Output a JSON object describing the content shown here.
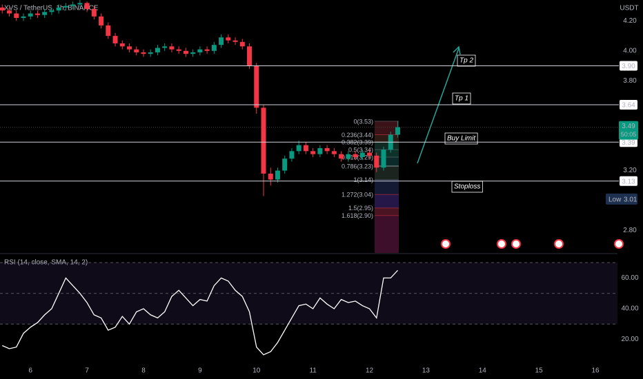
{
  "chart_data": [
    {
      "type": "candlestick",
      "title": "XVS / TetherUS, 1h, BINANCE",
      "unit": "USDT",
      "x": [
        5.5,
        5.625,
        5.75,
        5.875,
        6,
        6.125,
        6.25,
        6.375,
        6.5,
        6.625,
        6.75,
        6.875,
        7,
        7.125,
        7.25,
        7.375,
        7.5,
        7.625,
        7.75,
        7.875,
        8,
        8.125,
        8.25,
        8.375,
        8.5,
        8.625,
        8.75,
        8.875,
        9,
        9.125,
        9.25,
        9.375,
        9.5,
        9.625,
        9.75,
        9.875,
        10,
        10.125,
        10.25,
        10.375,
        10.5,
        10.625,
        10.75,
        10.875,
        11,
        11.125,
        11.25,
        11.375,
        11.5,
        11.625,
        11.75,
        11.875,
        12,
        12.125,
        12.25,
        12.375,
        12.5
      ],
      "open": [
        4.29,
        4.27,
        4.25,
        4.22,
        4.23,
        4.25,
        4.24,
        4.26,
        4.27,
        4.29,
        4.3,
        4.31,
        4.32,
        4.28,
        4.23,
        4.17,
        4.1,
        4.05,
        4.03,
        4.01,
        3.99,
        3.98,
        3.99,
        4.02,
        4.03,
        4.01,
        4.0,
        3.98,
        3.99,
        4.01,
        4.0,
        4.04,
        4.09,
        4.07,
        4.06,
        4.03,
        3.9,
        3.62,
        3.18,
        3.14,
        3.2,
        3.28,
        3.33,
        3.37,
        3.33,
        3.31,
        3.35,
        3.33,
        3.31,
        3.28,
        3.31,
        3.29,
        3.32,
        3.3,
        3.22,
        3.34,
        3.44
      ],
      "high": [
        4.31,
        4.29,
        4.27,
        4.25,
        4.27,
        4.27,
        4.28,
        4.29,
        4.31,
        4.32,
        4.33,
        4.34,
        4.33,
        4.3,
        4.25,
        4.19,
        4.12,
        4.07,
        4.05,
        4.03,
        4.01,
        4.01,
        4.04,
        4.05,
        4.05,
        4.03,
        4.02,
        4.01,
        4.03,
        4.03,
        4.06,
        4.11,
        4.11,
        4.09,
        4.08,
        4.05,
        3.92,
        3.64,
        3.22,
        3.22,
        3.3,
        3.35,
        3.4,
        3.39,
        3.35,
        3.37,
        3.37,
        3.35,
        3.33,
        3.33,
        3.33,
        3.34,
        3.34,
        3.32,
        3.36,
        3.46,
        3.53
      ],
      "low": [
        4.25,
        4.23,
        4.2,
        4.2,
        4.21,
        4.22,
        4.22,
        4.24,
        4.25,
        4.27,
        4.28,
        4.29,
        4.26,
        4.21,
        4.15,
        4.08,
        4.03,
        4.01,
        3.99,
        3.97,
        3.96,
        3.96,
        3.97,
        4.0,
        3.99,
        3.98,
        3.96,
        3.96,
        3.97,
        3.98,
        3.98,
        4.02,
        4.05,
        4.04,
        4.01,
        3.88,
        3.58,
        3.03,
        3.1,
        3.12,
        3.18,
        3.26,
        3.31,
        3.31,
        3.29,
        3.29,
        3.31,
        3.29,
        3.26,
        3.26,
        3.27,
        3.27,
        3.28,
        3.19,
        3.2,
        3.32,
        3.42
      ],
      "close": [
        4.27,
        4.25,
        4.22,
        4.23,
        4.25,
        4.24,
        4.26,
        4.27,
        4.29,
        4.3,
        4.31,
        4.32,
        4.28,
        4.23,
        4.17,
        4.1,
        4.05,
        4.03,
        4.01,
        3.99,
        3.98,
        3.99,
        4.02,
        4.03,
        4.01,
        4.0,
        3.98,
        3.99,
        4.01,
        4.0,
        4.04,
        4.09,
        4.07,
        4.06,
        4.03,
        3.9,
        3.62,
        3.18,
        3.14,
        3.2,
        3.28,
        3.33,
        3.37,
        3.33,
        3.31,
        3.35,
        3.33,
        3.31,
        3.28,
        3.31,
        3.29,
        3.32,
        3.3,
        3.22,
        3.34,
        3.44,
        3.49
      ],
      "up_color": "#089981",
      "down_color": "#f23645",
      "xlim": [
        5.46,
        16.39
      ],
      "ylim": [
        2.65,
        4.34
      ],
      "yticks": [
        {
          "value": 4.2,
          "label": "4.20"
        },
        {
          "value": 4.0,
          "label": "4.00"
        },
        {
          "value": 3.8,
          "label": "3.80"
        },
        {
          "value": 3.2,
          "label": "3.20"
        },
        {
          "value": 2.8,
          "label": "2.80"
        }
      ],
      "levels": [
        {
          "value": 3.9,
          "label": "3.90"
        },
        {
          "value": 3.64,
          "label": "3.64"
        },
        {
          "value": 3.39,
          "label": "3.39"
        },
        {
          "value": 3.13,
          "label": "3.13"
        }
      ],
      "annotations": [
        "Tp 2",
        "Tp 1",
        "Buy Limit",
        "Stoploss"
      ],
      "last_price": {
        "value": 3.49,
        "label": "3.49",
        "countdown": "50:05",
        "color": "#089981"
      },
      "low_marker": {
        "name": "Low",
        "value": 3.01,
        "label": "3.01"
      },
      "fib": {
        "prices": [
          3.53,
          3.44,
          3.39,
          3.34,
          3.29,
          3.23,
          3.14,
          3.04,
          2.95,
          2.9
        ],
        "labels": [
          "0(3.53)",
          "0.236(3.44)",
          "0.382(3.39)",
          "0.5(3.34)",
          "0.618(3.29)",
          "0.786(3.23)",
          "1(3.14)",
          "1.272(3.04)",
          "1.5(2.95)",
          "1.618(2.90)"
        ]
      }
    },
    {
      "type": "line",
      "title": "RSI (14, close, SMA, 14, 2)",
      "x": [
        5.5,
        5.625,
        5.75,
        5.875,
        6,
        6.125,
        6.25,
        6.375,
        6.5,
        6.625,
        6.75,
        6.875,
        7,
        7.125,
        7.25,
        7.375,
        7.5,
        7.625,
        7.75,
        7.875,
        8,
        8.125,
        8.25,
        8.375,
        8.5,
        8.625,
        8.75,
        8.875,
        9,
        9.125,
        9.25,
        9.375,
        9.5,
        9.625,
        9.75,
        9.875,
        10,
        10.125,
        10.25,
        10.375,
        10.5,
        10.625,
        10.75,
        10.875,
        11,
        11.125,
        11.25,
        11.375,
        11.5,
        11.625,
        11.75,
        11.875,
        12,
        12.125,
        12.25,
        12.375,
        12.5
      ],
      "values": [
        16,
        14,
        15,
        24,
        28,
        31,
        36,
        40,
        50,
        60,
        55,
        50,
        44,
        36,
        34,
        26,
        28,
        35,
        30,
        38,
        40,
        36,
        34,
        38,
        48,
        52,
        47,
        42,
        46,
        45,
        55,
        60,
        58,
        52,
        48,
        38,
        15,
        10,
        12,
        18,
        26,
        34,
        42,
        43,
        40,
        47,
        43,
        40,
        46,
        44,
        45,
        42,
        40,
        34,
        60,
        60,
        65
      ],
      "color": "#ffffff",
      "xlim": [
        5.46,
        16.39
      ],
      "ylim": [
        7.7,
        75
      ],
      "yticks": [
        {
          "value": 60,
          "label": "60.00"
        },
        {
          "value": 40,
          "label": "40.00"
        },
        {
          "value": 20,
          "label": "20.00"
        }
      ],
      "bands": [
        70,
        50,
        30
      ],
      "xticks": [
        6,
        7,
        8,
        9,
        10,
        11,
        12,
        13,
        14,
        15,
        16
      ]
    }
  ]
}
